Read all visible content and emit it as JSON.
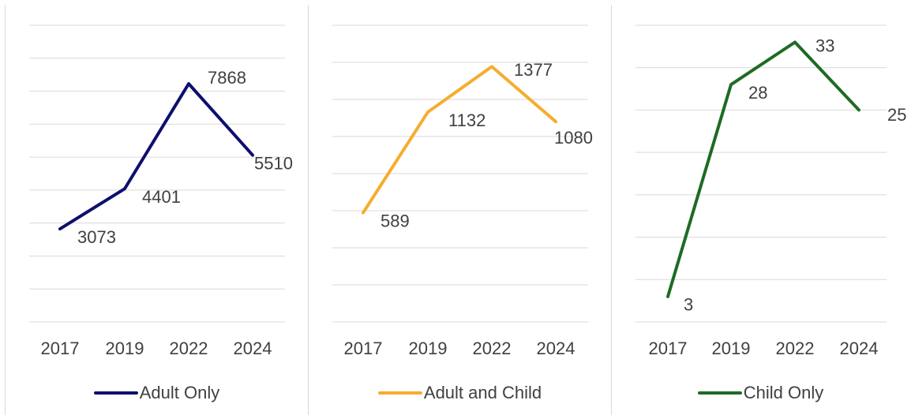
{
  "chart_data": [
    {
      "type": "line",
      "categories": [
        "2017",
        "2019",
        "2022",
        "2024"
      ],
      "series": [
        {
          "name": "Adult Only",
          "values": [
            3073,
            4401,
            7868,
            5510
          ],
          "color": "#0f0f6e"
        }
      ],
      "ylim": [
        0,
        9800
      ],
      "grid": true,
      "legend": "bottom"
    },
    {
      "type": "line",
      "categories": [
        "2017",
        "2019",
        "2022",
        "2024"
      ],
      "series": [
        {
          "name": "Adult and Child",
          "values": [
            589,
            1132,
            1377,
            1080
          ],
          "color": "#f5ad2f"
        }
      ],
      "ylim": [
        0,
        1600
      ],
      "grid": true,
      "legend": "bottom"
    },
    {
      "type": "line",
      "categories": [
        "2017",
        "2019",
        "2022",
        "2024"
      ],
      "series": [
        {
          "name": "Child Only",
          "values": [
            3,
            28,
            33,
            25
          ],
          "color": "#1e6b24"
        }
      ],
      "ylim": [
        0,
        35
      ],
      "grid": true,
      "legend": "bottom"
    }
  ]
}
